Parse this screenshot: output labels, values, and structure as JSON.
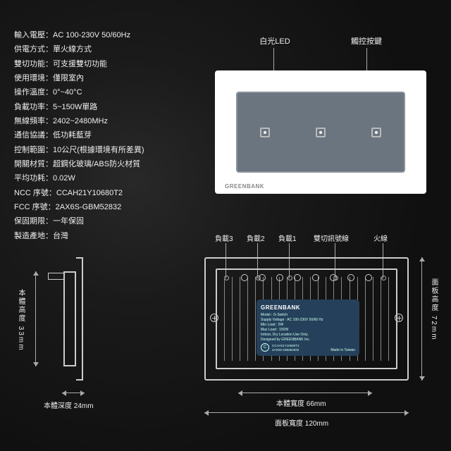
{
  "colors": {
    "bg": "#1a1a1a",
    "text": "#eeeeee",
    "line": "#aaaaaa",
    "panel_white": "#ffffff",
    "screen": "#6b7580",
    "plate": "#25405a"
  },
  "specs": [
    {
      "label": "輸入電壓",
      "value": "AC 100-230V  50/60Hz"
    },
    {
      "label": "供電方式",
      "value": "單火線方式"
    },
    {
      "label": "雙切功能",
      "value": "可支援雙切功能"
    },
    {
      "label": "使用環境",
      "value": "僅限室內"
    },
    {
      "label": "操作溫度",
      "value": "0°~40°C"
    },
    {
      "label": "負載功率",
      "value": "5~150W單路"
    },
    {
      "label": "無線頻率",
      "value": "2402~2480MHz"
    },
    {
      "label": "通信協議",
      "value": "低功耗藍芽"
    },
    {
      "label": "控制範圍",
      "value": "10公尺(根據環境有所差異)"
    },
    {
      "label": "開關材質",
      "value": "超鋼化玻璃/ABS防火材質"
    },
    {
      "label": "平均功耗",
      "value": "0.02W"
    },
    {
      "label": "NCC 序號",
      "value": "CCAH21Y10680T2"
    },
    {
      "label": "FCC 序號",
      "value": "2AX6S-GBM52832"
    },
    {
      "label": "保固期限",
      "value": "一年保固"
    },
    {
      "label": "製造產地",
      "value": "台灣"
    }
  ],
  "front": {
    "led_label": "白光LED",
    "touch_label": "觸控按鍵",
    "brand": "GREENBANK",
    "buttons": 3
  },
  "back": {
    "terminal_labels": [
      "負載3",
      "負載2",
      "負載1",
      "雙切訊號線",
      "火線"
    ],
    "plate": {
      "brand": "GREENBANK",
      "lines": [
        "Model : G-Switch",
        "Supply Voltage : AC 100-230V  50/60 Hz",
        "Min Load : 5W",
        "Max Load : 150W",
        "Indoor, Dry Location Use Only.",
        "Designed by GREENBANK Inc."
      ],
      "cert1": "CCAH21Y10680T2",
      "cert2": "2AX6S-GBM52832",
      "made": "Made in Taiwan"
    }
  },
  "dimensions": {
    "body_height": "本體高度 33mm",
    "body_depth": "本體深度  24mm",
    "body_width": "本體寬度  66mm",
    "panel_width": "面板寬度  120mm",
    "panel_height": "面板高度  72mm"
  }
}
